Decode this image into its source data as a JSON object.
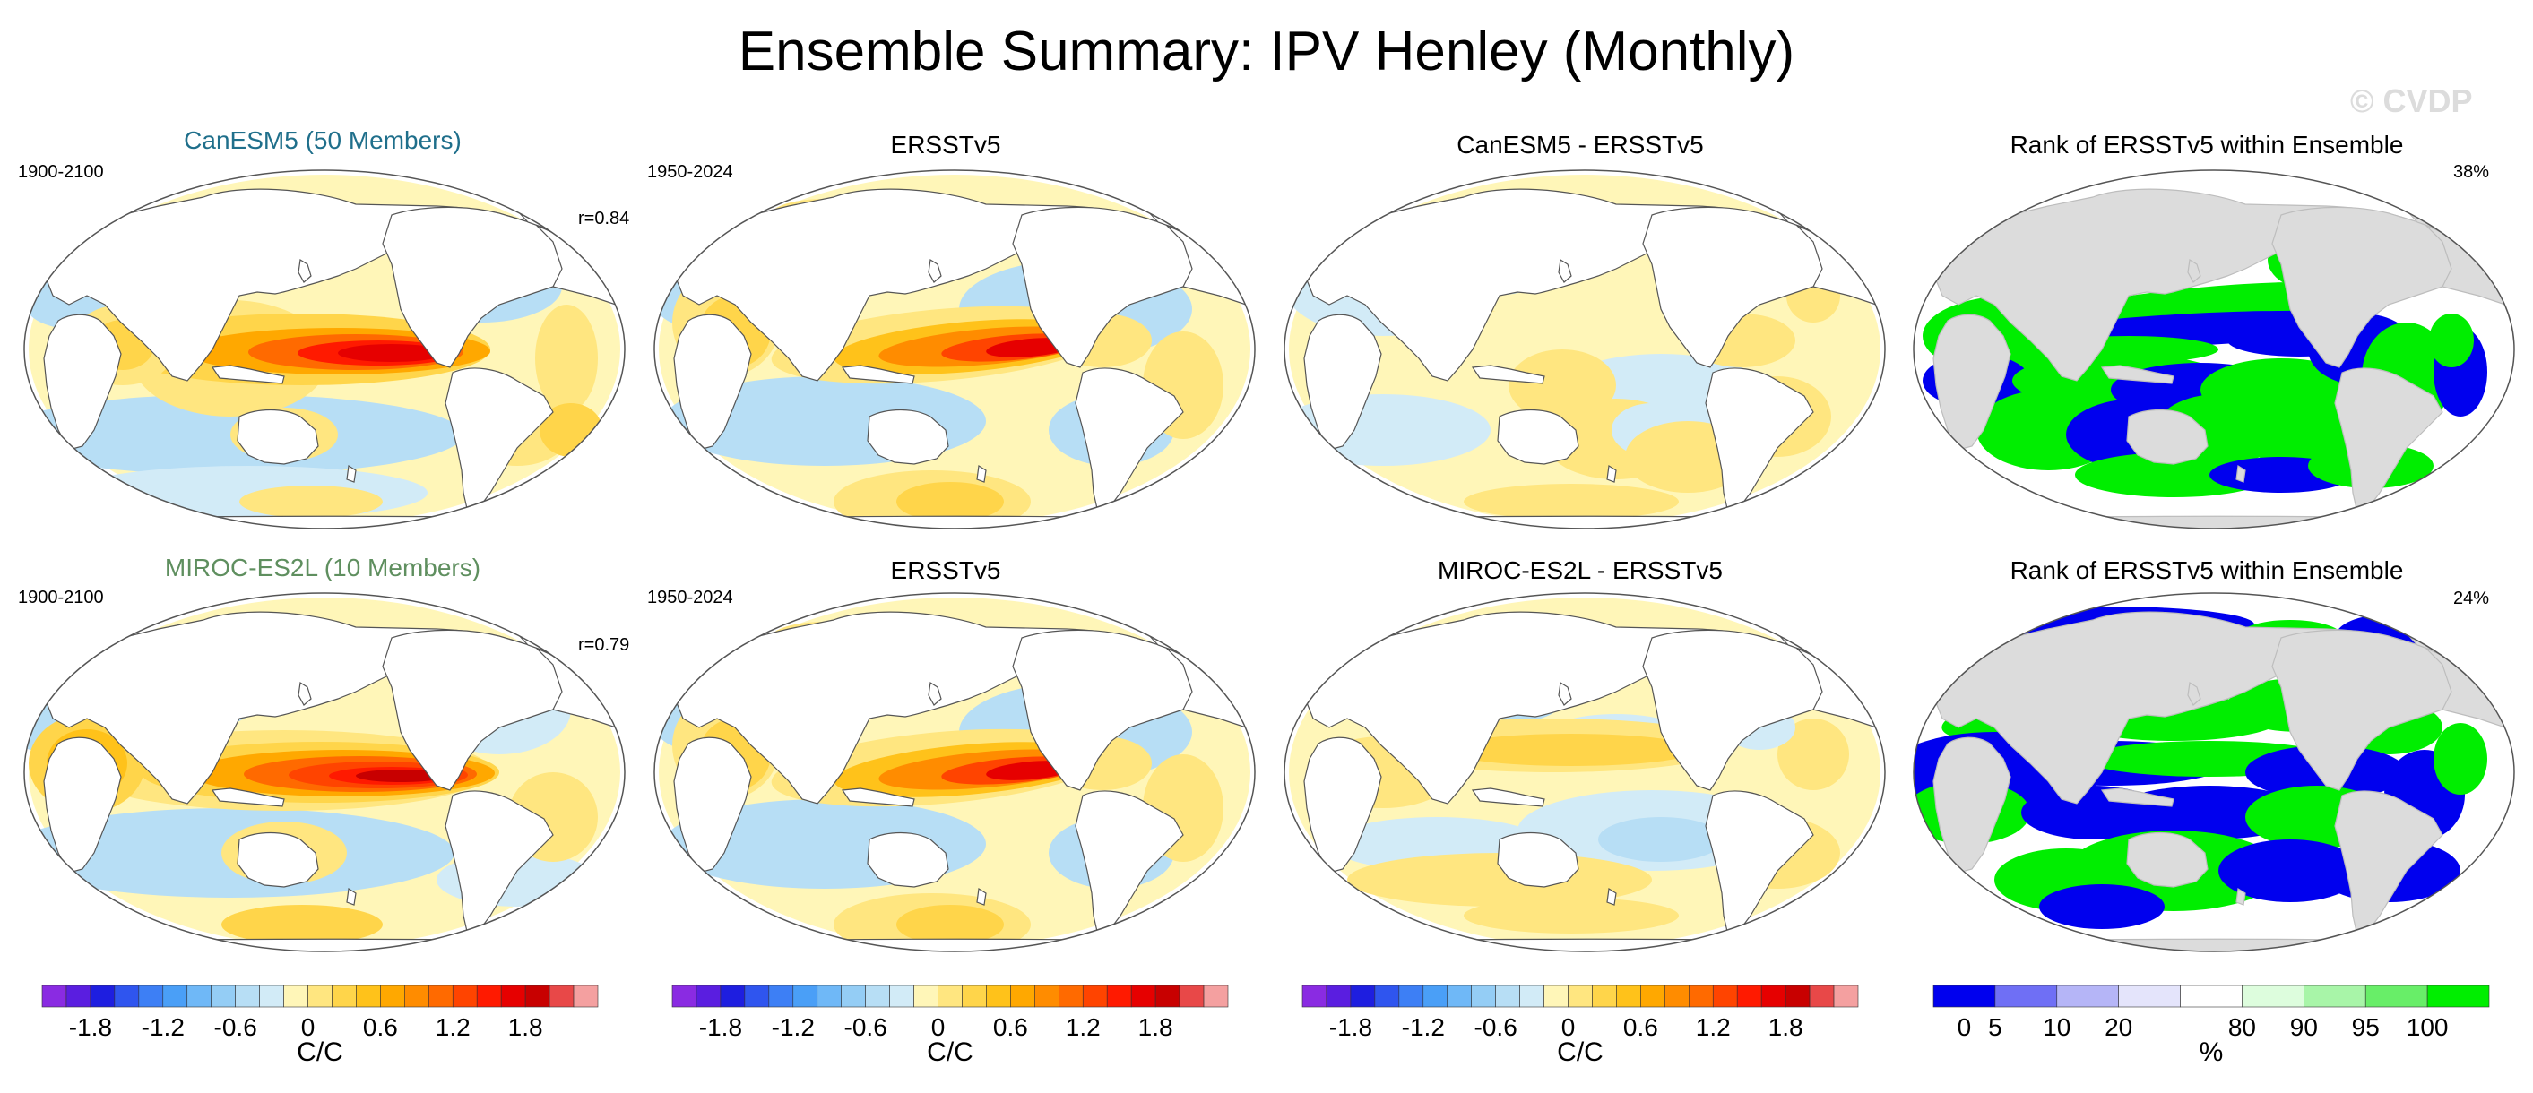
{
  "figure": {
    "title": "Ensemble Summary: IPV Henley (Monthly)",
    "watermark": "© CVDP"
  },
  "rows": [
    {
      "model_title": "CanESM5 (50 Members)",
      "model_title_color": "#1f6f8b",
      "model_period": "1900-2100",
      "model_r": "r=0.84",
      "obs_title": "ERSSTv5",
      "obs_period": "1950-2024",
      "diff_title": "CanESM5 - ERSSTv5",
      "rank_title": "Rank of ERSSTv5 within Ensemble",
      "rank_percent": "38%"
    },
    {
      "model_title": "MIROC-ES2L (10 Members)",
      "model_title_color": "#5f8f5f",
      "model_period": "1900-2100",
      "model_r": "r=0.79",
      "obs_title": "ERSSTv5",
      "obs_period": "1950-2024",
      "diff_title": "MIROC-ES2L - ERSSTv5",
      "rank_title": "Rank of ERSSTv5 within Ensemble",
      "rank_percent": "24%"
    }
  ],
  "colorbars": {
    "sst": {
      "unit": "C/C",
      "labels": [
        "-1.8",
        "-1.2",
        "-0.6",
        "0",
        "0.6",
        "1.2",
        "1.8"
      ],
      "colors": [
        "#8a2be2",
        "#5a1ee0",
        "#1e1ee0",
        "#2f55ef",
        "#3d7ff5",
        "#4a9ff7",
        "#6fb8f7",
        "#94cdf5",
        "#b7def5",
        "#d2ebf7",
        "#fff6b8",
        "#ffe680",
        "#ffd54a",
        "#ffc21a",
        "#ffa800",
        "#ff8c00",
        "#ff6a00",
        "#ff4400",
        "#ff1a00",
        "#e60000",
        "#c80000",
        "#e84848",
        "#f4a0a0"
      ]
    },
    "rank": {
      "unit": "%",
      "labels": [
        "0",
        "5",
        "10",
        "20",
        "80",
        "90",
        "95",
        "100"
      ],
      "colors": [
        "#0000ee",
        "#6f6ff5",
        "#b5b5f7",
        "#e4e4fb",
        "#ffffff",
        "#ddfddd",
        "#a8f5a8",
        "#68ee68",
        "#00ee00"
      ]
    }
  }
}
